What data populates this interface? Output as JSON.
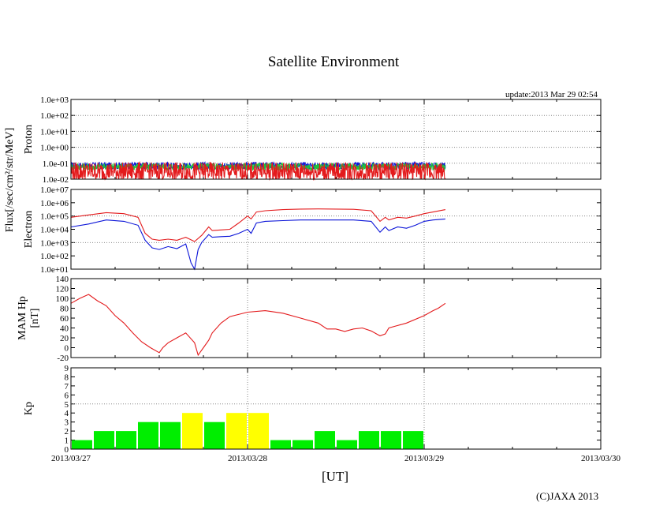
{
  "title": "Satellite Environment",
  "update": "update:2013 Mar 29 02:54",
  "copyright": "(C)JAXA 2013",
  "xlabel": "[UT]",
  "shared_ylabel": "Flux[/sec/cm²/str/MeV]",
  "x_ticks": [
    "2013/03/27",
    "2013/03/28",
    "2013/03/29",
    "2013/03/30"
  ],
  "colors": {
    "red": "#e31a1c",
    "blue": "#0b14d8",
    "green": "#1ec43a",
    "kp_green": "#00ee00",
    "kp_yellow": "#ffff00"
  },
  "chart_data": [
    {
      "type": "line",
      "panel": "proton",
      "ylabel": "Proton",
      "yscale": "log",
      "ylim": [
        0.01,
        1000
      ],
      "xlim": [
        0,
        3
      ],
      "x_units": "days since 2013/03/27 00:00 UT",
      "y_ticks": [
        "1.0e-02",
        "1.0e-01",
        "1.0e+00",
        "1.0e+01",
        "1.0e+02",
        "1.0e+03"
      ],
      "series": [
        {
          "color": "#0b14d8",
          "x": [
            0,
            0.5,
            1,
            1.5,
            2.12
          ],
          "y": [
            0.07,
            0.07,
            0.07,
            0.07,
            0.07
          ]
        },
        {
          "color": "#1ec43a",
          "x": [
            0,
            0.5,
            1,
            1.5,
            2.12
          ],
          "y": [
            0.06,
            0.06,
            0.06,
            0.06,
            0.06
          ]
        },
        {
          "color": "#e31a1c",
          "x": [
            0,
            0.5,
            1,
            1.5,
            2.12
          ],
          "y": [
            0.03,
            0.03,
            0.03,
            0.03,
            0.03
          ]
        }
      ]
    },
    {
      "type": "line",
      "panel": "electron",
      "ylabel": "Electron",
      "yscale": "log",
      "ylim": [
        10,
        10000000
      ],
      "xlim": [
        0,
        3
      ],
      "y_ticks": [
        "1.0e+01",
        "1.0e+02",
        "1.0e+03",
        "1.0e+04",
        "1.0e+05",
        "1.0e+06",
        "1.0e+07"
      ],
      "series": [
        {
          "color": "#e31a1c",
          "x": [
            0,
            0.1,
            0.2,
            0.3,
            0.38,
            0.42,
            0.46,
            0.5,
            0.55,
            0.6,
            0.65,
            0.7,
            0.74,
            0.78,
            0.8,
            0.85,
            0.9,
            0.95,
            1.0,
            1.02,
            1.05,
            1.1,
            1.2,
            1.3,
            1.4,
            1.5,
            1.6,
            1.7,
            1.75,
            1.78,
            1.8,
            1.85,
            1.9,
            1.95,
            2.0,
            2.05,
            2.12
          ],
          "y": [
            80000,
            120000,
            180000,
            150000,
            80000,
            5000,
            1800,
            1500,
            1800,
            1500,
            2500,
            1200,
            3500,
            15000,
            8000,
            9000,
            10000,
            30000,
            100000,
            60000,
            200000,
            250000,
            300000,
            330000,
            340000,
            330000,
            320000,
            250000,
            40000,
            80000,
            50000,
            80000,
            70000,
            100000,
            150000,
            200000,
            300000
          ]
        },
        {
          "color": "#0b14d8",
          "x": [
            0,
            0.1,
            0.2,
            0.3,
            0.38,
            0.42,
            0.46,
            0.5,
            0.55,
            0.6,
            0.65,
            0.68,
            0.7,
            0.72,
            0.74,
            0.78,
            0.8,
            0.85,
            0.9,
            0.95,
            1.0,
            1.02,
            1.05,
            1.1,
            1.2,
            1.3,
            1.4,
            1.5,
            1.6,
            1.7,
            1.75,
            1.78,
            1.8,
            1.85,
            1.9,
            1.95,
            2.0,
            2.05,
            2.12
          ],
          "y": [
            15000,
            25000,
            50000,
            40000,
            20000,
            1500,
            400,
            300,
            500,
            350,
            800,
            30,
            10,
            300,
            1000,
            4000,
            2500,
            2800,
            3000,
            5000,
            10000,
            5000,
            30000,
            40000,
            45000,
            50000,
            50000,
            50000,
            50000,
            40000,
            6000,
            15000,
            8000,
            15000,
            12000,
            20000,
            40000,
            50000,
            60000
          ]
        }
      ]
    },
    {
      "type": "line",
      "panel": "mam_hp",
      "ylabel": "MAM Hp\n[nT]",
      "ylim": [
        -20,
        140
      ],
      "xlim": [
        0,
        3
      ],
      "y_ticks": [
        "-20",
        "0",
        "20",
        "40",
        "60",
        "80",
        "100",
        "120",
        "140"
      ],
      "series": [
        {
          "color": "#e31a1c",
          "x": [
            0,
            0.05,
            0.1,
            0.15,
            0.2,
            0.25,
            0.3,
            0.35,
            0.4,
            0.45,
            0.5,
            0.52,
            0.55,
            0.6,
            0.65,
            0.7,
            0.72,
            0.75,
            0.78,
            0.8,
            0.85,
            0.9,
            1.0,
            1.1,
            1.2,
            1.3,
            1.4,
            1.45,
            1.5,
            1.55,
            1.6,
            1.65,
            1.7,
            1.75,
            1.78,
            1.8,
            1.85,
            1.9,
            2.0,
            2.05,
            2.08,
            2.12
          ],
          "y": [
            90,
            100,
            108,
            95,
            85,
            65,
            50,
            30,
            12,
            0,
            -10,
            0,
            10,
            20,
            30,
            10,
            -15,
            0,
            15,
            30,
            50,
            63,
            72,
            75,
            70,
            60,
            50,
            38,
            38,
            33,
            38,
            40,
            34,
            24,
            28,
            40,
            45,
            50,
            65,
            75,
            80,
            90
          ]
        }
      ]
    },
    {
      "type": "bar",
      "panel": "kp",
      "ylabel": "Kp",
      "ylim": [
        0,
        9
      ],
      "xlim": [
        0,
        3
      ],
      "y_ticks": [
        "0",
        "1",
        "2",
        "3",
        "4",
        "5",
        "6",
        "7",
        "8",
        "9"
      ],
      "bar_width_days": 0.125,
      "x_start": [
        0,
        0.125,
        0.25,
        0.375,
        0.5,
        0.625,
        0.75,
        0.875,
        1.0,
        1.125,
        1.25,
        1.375,
        1.5,
        1.625,
        1.75,
        1.875
      ],
      "values": [
        1,
        2,
        2,
        3,
        3,
        4,
        3,
        4,
        4,
        1,
        1,
        2,
        1,
        2,
        2,
        2
      ],
      "bar_colors": [
        "#00ee00",
        "#00ee00",
        "#00ee00",
        "#00ee00",
        "#00ee00",
        "#ffff00",
        "#00ee00",
        "#ffff00",
        "#ffff00",
        "#00ee00",
        "#00ee00",
        "#00ee00",
        "#00ee00",
        "#00ee00",
        "#00ee00",
        "#00ee00"
      ],
      "reference_line": 5
    }
  ]
}
